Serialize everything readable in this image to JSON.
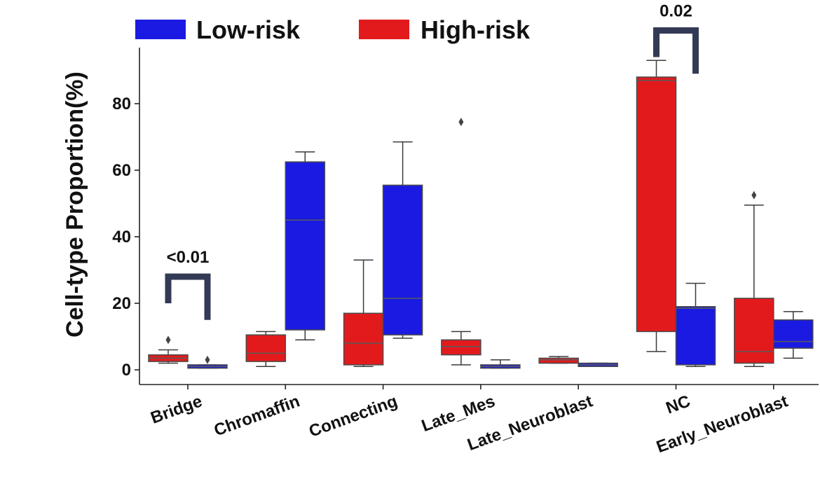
{
  "chart_data": {
    "type": "boxplot",
    "title": "",
    "xlabel": "",
    "ylabel": "Cell-type Proportion(%)",
    "ylim": [
      -4,
      97
    ],
    "yticks": [
      0,
      20,
      40,
      60,
      80
    ],
    "grid": false,
    "legend_position": "top",
    "categories": [
      "Bridge",
      "Chromaffin",
      "Connecting",
      "Late_Mes",
      "Late_Neuroblast",
      "NC",
      "Early_Neuroblast"
    ],
    "series": [
      {
        "name": "High-risk",
        "color": "#e31a1c",
        "boxes": [
          {
            "whislo": 2,
            "q1": 2.5,
            "med": 3.5,
            "q3": 4.5,
            "whishi": 6,
            "fliers": [
              9
            ]
          },
          {
            "whislo": 1,
            "q1": 2.5,
            "med": 5,
            "q3": 10.5,
            "whishi": 11.5,
            "fliers": []
          },
          {
            "whislo": 1,
            "q1": 1.5,
            "med": 8,
            "q3": 17,
            "whishi": 33,
            "fliers": []
          },
          {
            "whislo": 1.5,
            "q1": 4.5,
            "med": 7,
            "q3": 9,
            "whishi": 11.5,
            "fliers": [
              74.5
            ]
          },
          {
            "whislo": 2,
            "q1": 2,
            "med": 3,
            "q3": 3.5,
            "whishi": 4,
            "fliers": []
          },
          {
            "whislo": 5.5,
            "q1": 11.5,
            "med": 87,
            "q3": 88,
            "whishi": 93,
            "fliers": []
          },
          {
            "whislo": 1,
            "q1": 2,
            "med": 5.5,
            "q3": 21.5,
            "whishi": 49.5,
            "fliers": [
              52.5
            ]
          }
        ]
      },
      {
        "name": "Low-risk",
        "color": "#1a1ae3",
        "boxes": [
          {
            "whislo": 0.5,
            "q1": 0.5,
            "med": 1,
            "q3": 1.5,
            "whishi": 1.5,
            "fliers": [
              3
            ]
          },
          {
            "whislo": 9,
            "q1": 12,
            "med": 45,
            "q3": 62.5,
            "whishi": 65.5,
            "fliers": []
          },
          {
            "whislo": 9.5,
            "q1": 10.5,
            "med": 21.5,
            "q3": 55.5,
            "whishi": 68.5,
            "fliers": []
          },
          {
            "whislo": 0.5,
            "q1": 0.5,
            "med": 1,
            "q3": 1.5,
            "whishi": 3,
            "fliers": []
          },
          {
            "whislo": 1,
            "q1": 1,
            "med": 1.5,
            "q3": 2,
            "whishi": 2,
            "fliers": []
          },
          {
            "whislo": 1,
            "q1": 1.5,
            "med": 18.5,
            "q3": 19,
            "whishi": 26,
            "fliers": []
          },
          {
            "whislo": 3.5,
            "q1": 6.5,
            "med": 8.5,
            "q3": 15,
            "whishi": 17.5,
            "fliers": []
          }
        ]
      }
    ],
    "legend": [
      {
        "label": "Low-risk",
        "color": "#1a1ae3"
      },
      {
        "label": "High-risk",
        "color": "#e31a1c"
      }
    ],
    "annotations": [
      {
        "text": "<0.01",
        "category": "Bridge",
        "bracket_top": 28,
        "bracket_left_end": 20,
        "bracket_right_end": 15
      },
      {
        "text": "0.02",
        "category": "NC",
        "bracket_top": 102,
        "bracket_left_end": 94,
        "bracket_right_end": 89
      }
    ]
  }
}
